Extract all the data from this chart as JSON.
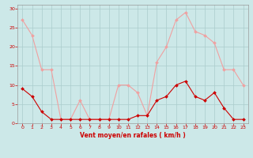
{
  "x": [
    0,
    1,
    2,
    3,
    4,
    5,
    6,
    7,
    8,
    9,
    10,
    11,
    12,
    13,
    14,
    15,
    16,
    17,
    18,
    19,
    20,
    21,
    22,
    23
  ],
  "rafales": [
    27,
    23,
    14,
    14,
    1,
    1,
    6,
    1,
    1,
    1,
    10,
    10,
    8,
    2,
    16,
    20,
    27,
    29,
    24,
    23,
    21,
    14,
    14,
    10
  ],
  "moyen": [
    9,
    7,
    3,
    1,
    1,
    1,
    1,
    1,
    1,
    1,
    1,
    1,
    2,
    2,
    6,
    7,
    10,
    11,
    7,
    6,
    8,
    4,
    1,
    1
  ],
  "color_rafales": "#f0a0a0",
  "color_moyen": "#cc0000",
  "background_color": "#cce8e8",
  "grid_color": "#aacccc",
  "xlabel": "Vent moyen/en rafales ( km/h )",
  "yticks": [
    0,
    5,
    10,
    15,
    20,
    25,
    30
  ],
  "xticks": [
    0,
    1,
    2,
    3,
    4,
    5,
    6,
    7,
    8,
    9,
    10,
    11,
    12,
    13,
    14,
    15,
    16,
    17,
    18,
    19,
    20,
    21,
    22,
    23
  ],
  "ylim": [
    0,
    31
  ],
  "xlim": [
    -0.5,
    23.5
  ]
}
